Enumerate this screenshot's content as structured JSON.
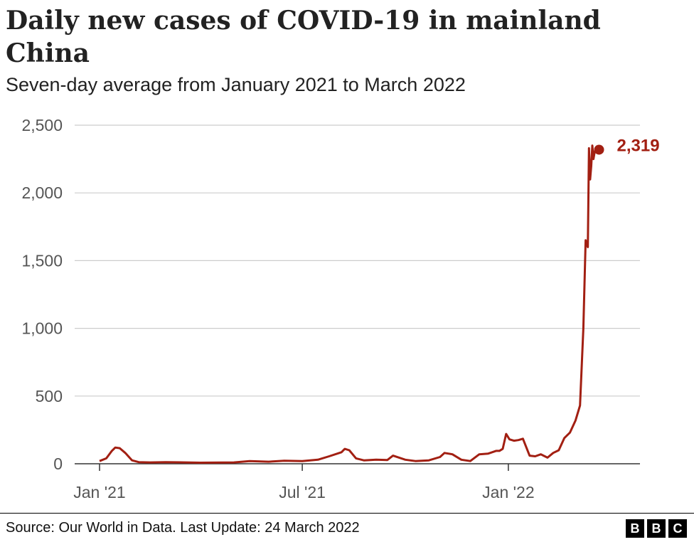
{
  "chart_data": {
    "type": "line",
    "title": "Daily new cases of COVID-19 in mainland China",
    "subtitle": "Seven-day average from January 2021 to March 2022",
    "xlabel": "",
    "ylabel": "",
    "ylim": [
      0,
      2500
    ],
    "yticks": [
      0,
      500,
      1000,
      1500,
      2000,
      2500
    ],
    "ytick_labels": [
      "0",
      "500",
      "1,000",
      "1,500",
      "2,000",
      "2,500"
    ],
    "xticks": [
      {
        "label": "Jan '21",
        "date": "2021-01-01"
      },
      {
        "label": "Jul '21",
        "date": "2021-07-01"
      },
      {
        "label": "Jan '22",
        "date": "2022-01-01"
      }
    ],
    "grid": "horizontal",
    "color": "#a21f12",
    "series": [
      {
        "x": [
          "2021-01-01",
          "2021-01-07",
          "2021-01-12",
          "2021-01-15",
          "2021-01-19",
          "2021-01-24",
          "2021-01-30",
          "2021-02-05",
          "2021-02-15",
          "2021-03-01",
          "2021-04-01",
          "2021-05-01",
          "2021-05-15",
          "2021-06-01",
          "2021-06-15",
          "2021-07-01",
          "2021-07-15",
          "2021-07-25",
          "2021-08-05",
          "2021-08-08",
          "2021-08-12",
          "2021-08-18",
          "2021-08-25",
          "2021-09-05",
          "2021-09-15",
          "2021-09-20",
          "2021-10-01",
          "2021-10-10",
          "2021-10-22",
          "2021-11-01",
          "2021-11-05",
          "2021-11-12",
          "2021-11-20",
          "2021-11-28",
          "2021-12-06",
          "2021-12-14",
          "2021-12-21",
          "2021-12-24",
          "2021-12-27",
          "2021-12-30",
          "2022-01-02",
          "2022-01-06",
          "2022-01-10",
          "2022-01-14",
          "2022-01-20",
          "2022-01-25",
          "2022-01-30",
          "2022-02-05",
          "2022-02-10",
          "2022-02-15",
          "2022-02-20",
          "2022-02-25",
          "2022-03-02",
          "2022-03-06",
          "2022-03-09",
          "2022-03-11",
          "2022-03-13",
          "2022-03-14",
          "2022-03-15",
          "2022-03-16",
          "2022-03-17",
          "2022-03-18",
          "2022-03-19",
          "2022-03-20",
          "2022-03-21",
          "2022-03-22",
          "2022-03-23"
        ],
        "y": [
          20,
          40,
          95,
          120,
          115,
          80,
          25,
          12,
          10,
          12,
          8,
          10,
          20,
          15,
          22,
          20,
          30,
          55,
          85,
          110,
          100,
          40,
          25,
          30,
          28,
          60,
          30,
          20,
          25,
          50,
          80,
          70,
          30,
          20,
          70,
          75,
          95,
          95,
          110,
          220,
          180,
          170,
          175,
          185,
          60,
          55,
          70,
          45,
          80,
          100,
          190,
          230,
          320,
          430,
          1000,
          1650,
          1600,
          2330,
          2100,
          2200,
          2350,
          2250,
          2300,
          2330,
          2300,
          2310,
          2319
        ]
      }
    ],
    "end_label": "2,319",
    "source": "Source: Our World in Data. Last Update: 24 March 2022",
    "logo": [
      "B",
      "B",
      "C"
    ]
  }
}
